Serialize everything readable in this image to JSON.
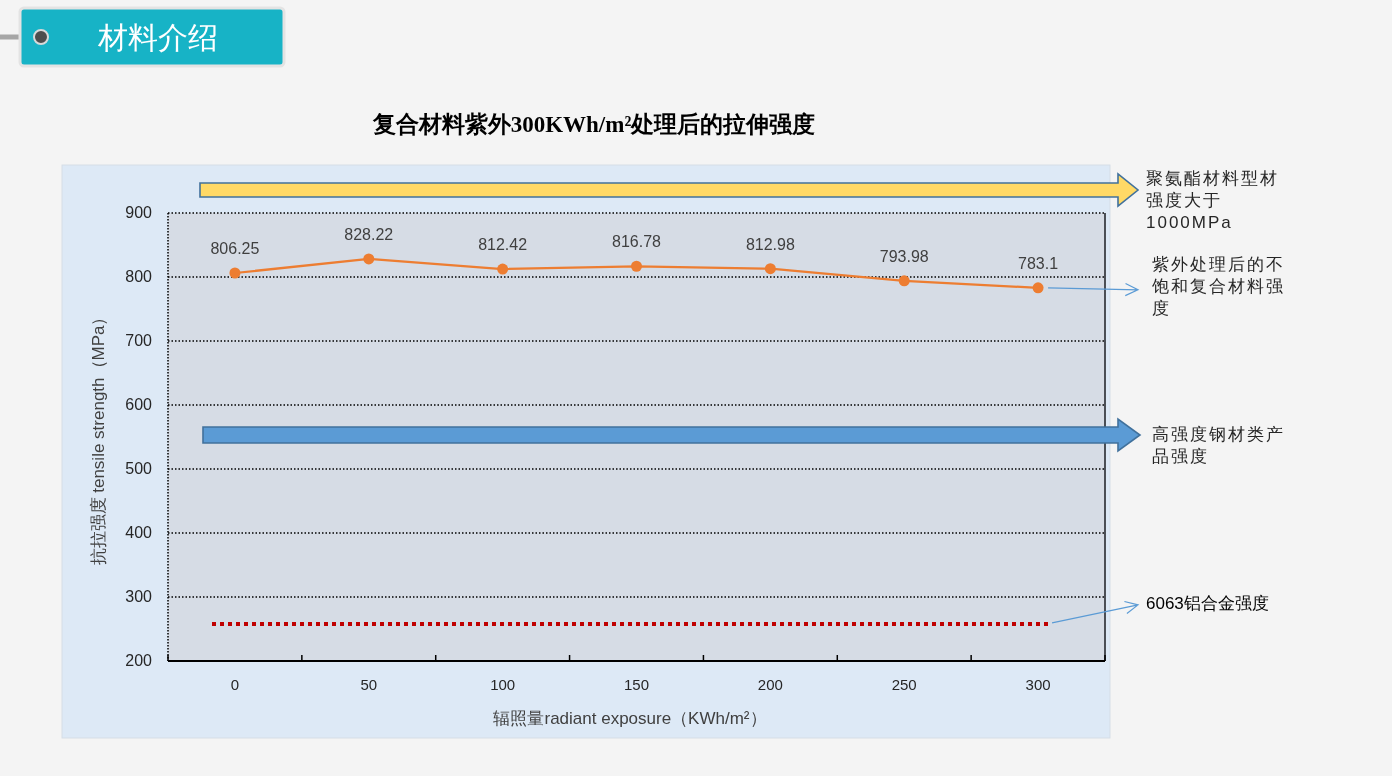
{
  "chart_data": {
    "type": "line",
    "title": "复合材料紫外300KWh/m²处理后的拉伸强度",
    "xlabel": "辐照量radiant exposure（KWh/m²）",
    "ylabel": "抗拉强度 tensile strength（MPa）",
    "categories": [
      "0",
      "50",
      "100",
      "150",
      "200",
      "250",
      "300"
    ],
    "series": [
      {
        "name": "紫外处理后的不饱和复合材料强度",
        "color": "#ed7d31",
        "values": [
          806.25,
          828.22,
          812.42,
          816.78,
          812.98,
          793.98,
          783.1
        ]
      }
    ],
    "ylim": [
      200,
      900
    ],
    "yticks": [
      200,
      300,
      400,
      500,
      600,
      700,
      800,
      900
    ],
    "grid": "y",
    "marker": "circle",
    "line_style": "solid",
    "data_labels": true,
    "ref_lines": [
      {
        "axis": "y",
        "value": 258,
        "label": "6063铝合金强度",
        "color": "#c00000",
        "line_style": "dotted"
      }
    ],
    "annotations": [
      "材料介绍",
      "聚氨酯材料型材强度大于1000MPa",
      "高强度钢材类产品强度"
    ]
  }
}
